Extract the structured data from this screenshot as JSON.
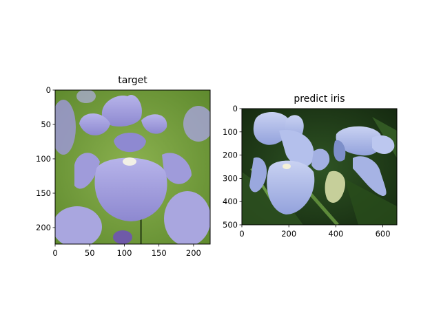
{
  "chart_data": [
    {
      "type": "image",
      "title": "target",
      "image_description": "purple bearded iris flower on green background",
      "xlim": [
        0,
        224
      ],
      "ylim": [
        224,
        0
      ],
      "x_ticks": [
        0,
        50,
        100,
        150,
        200
      ],
      "y_ticks": [
        0,
        50,
        100,
        150,
        200
      ],
      "x_tick_labels": [
        "0",
        "50",
        "100",
        "150",
        "200"
      ],
      "y_tick_labels": [
        "0",
        "50",
        "100",
        "150",
        "200"
      ]
    },
    {
      "type": "image",
      "title": "predict iris",
      "image_description": "two pale blue iris flowers on dark green foliage",
      "xlim": [
        0,
        660
      ],
      "ylim": [
        500,
        0
      ],
      "x_ticks": [
        0,
        200,
        400,
        600
      ],
      "y_ticks": [
        0,
        100,
        200,
        300,
        400,
        500
      ],
      "x_tick_labels": [
        "0",
        "200",
        "400",
        "600"
      ],
      "y_tick_labels": [
        "0",
        "100",
        "200",
        "300",
        "400",
        "500"
      ]
    }
  ],
  "colors": {
    "target_background": "#6d9a3a",
    "target_petal": "#a9a6df",
    "predict_background": "#1f3a17",
    "predict_petal": "#aeb9e8"
  }
}
